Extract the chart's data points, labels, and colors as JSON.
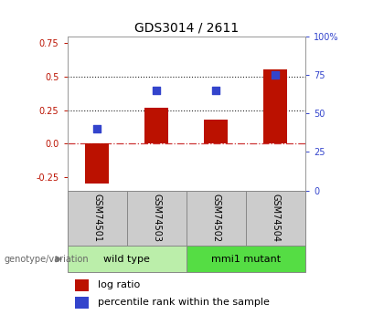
{
  "title": "GDS3014 / 2611",
  "samples": [
    "GSM74501",
    "GSM74503",
    "GSM74502",
    "GSM74504"
  ],
  "log_ratio": [
    -0.3,
    0.27,
    0.18,
    0.55
  ],
  "percentile_rank_pct": [
    40,
    65,
    65,
    75
  ],
  "groups": [
    {
      "label": "wild type",
      "samples": [
        0,
        1
      ],
      "color": "#bbeeaa"
    },
    {
      "label": "mmi1 mutant",
      "samples": [
        2,
        3
      ],
      "color": "#55dd44"
    }
  ],
  "ylim_left": [
    -0.35,
    0.8
  ],
  "ylim_right": [
    0,
    100
  ],
  "left_ticks": [
    -0.25,
    0.0,
    0.25,
    0.5,
    0.75
  ],
  "right_ticks": [
    0,
    25,
    50,
    75,
    100
  ],
  "right_tick_labels": [
    "0",
    "25",
    "50",
    "75",
    "100%"
  ],
  "bar_color": "#bb1100",
  "dot_color": "#3344cc",
  "zero_line_color": "#cc3333",
  "dotted_line_color": "#222222",
  "bg_color": "#ffffff",
  "genotype_label": "genotype/variation",
  "legend_bar_label": "log ratio",
  "legend_dot_label": "percentile rank within the sample",
  "title_fontsize": 10,
  "tick_fontsize": 7,
  "sample_fontsize": 7,
  "group_fontsize": 8,
  "legend_fontsize": 8
}
